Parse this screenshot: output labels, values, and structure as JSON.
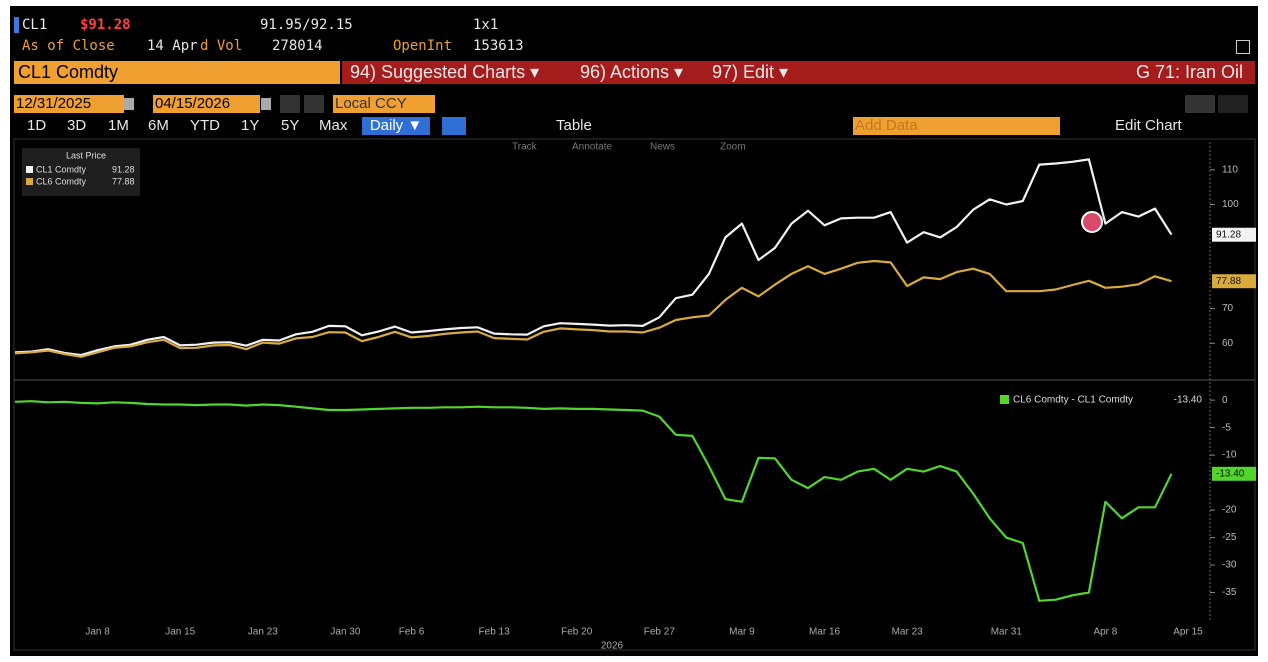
{
  "header": {
    "ticker": "CL1",
    "price": "$91.28",
    "bid_ask": "91.95/92.15",
    "size": "1x1",
    "as_of": "As of Close",
    "date": "14 Apr",
    "vol_label": "d Vol",
    "vol": "278014",
    "oi_label": "OpenInt",
    "oi": "153613"
  },
  "menu": {
    "security": "CL1 Comdty",
    "items": [
      "94) Suggested Charts ▾",
      "96) Actions ▾",
      "97) Edit ▾"
    ],
    "page": "G 71: Iran Oil"
  },
  "controls": {
    "start": "12/31/2025",
    "end": "04/15/2026",
    "currency": "Local CCY",
    "ranges": [
      "1D",
      "3D",
      "1M",
      "6M",
      "YTD",
      "1Y",
      "5Y",
      "Max"
    ],
    "frequency": "Daily ▼",
    "table": "Table",
    "add_data": "Add Data",
    "edit_chart": "Edit Chart",
    "tools": [
      "Track",
      "Annotate",
      "News",
      "Zoom"
    ]
  },
  "legend_title": "Last Price",
  "chart_data": [
    {
      "type": "line",
      "ylim": [
        50,
        118
      ],
      "yticks": [
        60,
        70,
        100,
        110
      ],
      "series": [
        {
          "name": "CL1 Comdty",
          "color": "#f2f2f2",
          "values": [
            57.4,
            57.6,
            58.3,
            57.2,
            56.6,
            58.0,
            59.1,
            59.6,
            61.0,
            61.8,
            59.4,
            59.6,
            60.2,
            60.3,
            59.3,
            61.0,
            60.8,
            62.6,
            63.3,
            65.0,
            64.9,
            62.3,
            63.4,
            64.8,
            63.1,
            63.5,
            64.0,
            64.4,
            64.6,
            62.8,
            62.6,
            62.5,
            64.9,
            65.8,
            65.6,
            65.4,
            65.1,
            65.2,
            65.0,
            67.5,
            73.0,
            74.0,
            80.0,
            90.5,
            94.5,
            84.0,
            87.5,
            94.5,
            98.2,
            94.0,
            96.0,
            96.2,
            96.2,
            97.8,
            89.0,
            92.0,
            90.5,
            93.5,
            98.5,
            101.5,
            100.0,
            101.0,
            111.5,
            111.8,
            112.3,
            113.0,
            94.5,
            97.8,
            96.5,
            98.8,
            91.28,
            null
          ]
        },
        {
          "name": "CL6 Comdty",
          "color": "#d9ab3c",
          "values": [
            57.1,
            57.4,
            57.9,
            56.9,
            56.1,
            57.4,
            58.7,
            59.1,
            60.3,
            61.0,
            58.6,
            58.7,
            59.4,
            59.5,
            58.3,
            60.2,
            59.9,
            61.4,
            61.8,
            63.2,
            63.1,
            60.6,
            61.8,
            63.3,
            61.7,
            62.1,
            62.7,
            63.1,
            63.4,
            61.5,
            61.3,
            61.1,
            63.3,
            64.3,
            64.0,
            63.8,
            63.4,
            63.4,
            63.1,
            64.5,
            66.7,
            67.5,
            68.0,
            72.5,
            76.0,
            73.5,
            76.9,
            80.0,
            82.2,
            80.0,
            81.5,
            83.2,
            83.7,
            83.3,
            76.5,
            79.0,
            78.5,
            80.5,
            81.5,
            80.0,
            75.0,
            75.0,
            75.0,
            75.5,
            76.8,
            78.0,
            76.0,
            76.3,
            77.0,
            79.3,
            77.88,
            null
          ]
        }
      ]
    },
    {
      "type": "line",
      "ylim": [
        -40,
        3.3
      ],
      "yticks": [
        0,
        -5,
        -10,
        -20,
        -25,
        -30,
        -35
      ],
      "xlabel": "2026",
      "categories": [
        null,
        null,
        null,
        null,
        null,
        "Jan 8",
        null,
        null,
        null,
        null,
        "Jan 15",
        null,
        null,
        null,
        null,
        "Jan 23",
        null,
        null,
        null,
        null,
        "Jan 30",
        null,
        null,
        null,
        "Feb 6",
        null,
        null,
        null,
        null,
        "Feb 13",
        null,
        null,
        null,
        null,
        "Feb 20",
        null,
        null,
        null,
        null,
        "Feb 27",
        null,
        null,
        null,
        null,
        "Mar 9",
        null,
        null,
        null,
        null,
        "Mar 16",
        null,
        null,
        null,
        null,
        "Mar 23",
        null,
        null,
        null,
        null,
        null,
        "Mar 31",
        null,
        null,
        null,
        null,
        null,
        "Apr 8",
        null,
        null,
        null,
        null,
        "Apr 15"
      ],
      "series": [
        {
          "name": "CL6 Comdty - CL1 Comdty",
          "color": "#52d62e",
          "values": [
            -0.3,
            -0.2,
            -0.4,
            -0.3,
            -0.5,
            -0.6,
            -0.4,
            -0.5,
            -0.7,
            -0.8,
            -0.8,
            -0.9,
            -0.8,
            -0.8,
            -1.0,
            -0.8,
            -0.9,
            -1.2,
            -1.5,
            -1.8,
            -1.8,
            -1.7,
            -1.6,
            -1.5,
            -1.4,
            -1.4,
            -1.3,
            -1.3,
            -1.2,
            -1.3,
            -1.3,
            -1.4,
            -1.6,
            -1.5,
            -1.6,
            -1.6,
            -1.7,
            -1.8,
            -1.9,
            -3.0,
            -6.3,
            -6.5,
            -12.0,
            -18.0,
            -18.5,
            -10.5,
            -10.6,
            -14.5,
            -16.0,
            -14.0,
            -14.5,
            -13.0,
            -12.5,
            -14.5,
            -12.5,
            -13.0,
            -12.0,
            -13.0,
            -17.0,
            -21.5,
            -25.0,
            -26.0,
            -36.5,
            -36.3,
            -35.5,
            -35.0,
            -18.5,
            -21.5,
            -19.5,
            -19.5,
            -13.4,
            null
          ],
          "value_labels": [
            null,
            null,
            null,
            null,
            null,
            null,
            null,
            null,
            null,
            null,
            null,
            null,
            null,
            null,
            null,
            null,
            null,
            null,
            null,
            null,
            null,
            null,
            null,
            null,
            null,
            null,
            null,
            null,
            null,
            null,
            null,
            null,
            null,
            null,
            null,
            null,
            null,
            null,
            null,
            null,
            null,
            null,
            null,
            null,
            null,
            null,
            null,
            null,
            null,
            null,
            null,
            null,
            null,
            null,
            null,
            null,
            null,
            null,
            null,
            null,
            null,
            null,
            null,
            null,
            null,
            null,
            null,
            null,
            null,
            null,
            "-13.40",
            null
          ]
        }
      ]
    }
  ]
}
